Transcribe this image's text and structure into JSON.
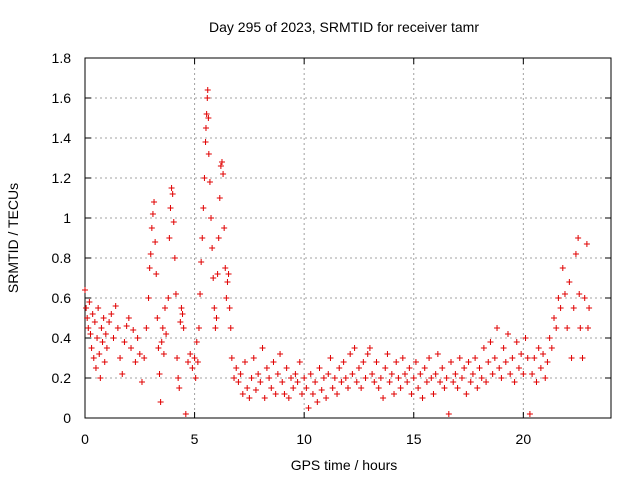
{
  "chart_data": {
    "type": "scatter",
    "title": "Day 295 of 2023, SRMTID for receiver tamr",
    "xlabel": "GPS time / hours",
    "ylabel": "SRMTID / TECUs",
    "xlim": [
      0,
      24
    ],
    "ylim": [
      0,
      1.8
    ],
    "xticks": [
      0,
      5,
      10,
      15,
      20
    ],
    "yticks": [
      0,
      0.2,
      0.4,
      0.6,
      0.8,
      1,
      1.2,
      1.4,
      1.6,
      1.8
    ],
    "xtick_labels": [
      "0",
      "5",
      "10",
      "15",
      "20"
    ],
    "ytick_labels": [
      "0",
      "0.2",
      "0.4",
      "0.6",
      "0.8",
      "1",
      "1.2",
      "1.4",
      "1.6",
      "1.8"
    ],
    "grid": true,
    "marker": "+",
    "color": "#e00000",
    "series": [
      {
        "name": "SRMTID",
        "points": [
          [
            0.0,
            0.64
          ],
          [
            0.05,
            0.55
          ],
          [
            0.1,
            0.5
          ],
          [
            0.15,
            0.45
          ],
          [
            0.2,
            0.58
          ],
          [
            0.25,
            0.42
          ],
          [
            0.3,
            0.35
          ],
          [
            0.35,
            0.52
          ],
          [
            0.4,
            0.3
          ],
          [
            0.45,
            0.48
          ],
          [
            0.5,
            0.25
          ],
          [
            0.55,
            0.4
          ],
          [
            0.6,
            0.55
          ],
          [
            0.65,
            0.32
          ],
          [
            0.7,
            0.2
          ],
          [
            0.75,
            0.45
          ],
          [
            0.8,
            0.38
          ],
          [
            0.85,
            0.5
          ],
          [
            0.9,
            0.28
          ],
          [
            0.95,
            0.42
          ],
          [
            1.0,
            0.35
          ],
          [
            1.1,
            0.48
          ],
          [
            1.2,
            0.52
          ],
          [
            1.3,
            0.4
          ],
          [
            1.4,
            0.56
          ],
          [
            1.5,
            0.45
          ],
          [
            1.6,
            0.3
          ],
          [
            1.7,
            0.22
          ],
          [
            1.8,
            0.38
          ],
          [
            1.9,
            0.46
          ],
          [
            2.0,
            0.5
          ],
          [
            2.1,
            0.35
          ],
          [
            2.2,
            0.44
          ],
          [
            2.3,
            0.28
          ],
          [
            2.4,
            0.4
          ],
          [
            2.5,
            0.32
          ],
          [
            2.6,
            0.18
          ],
          [
            2.7,
            0.3
          ],
          [
            2.8,
            0.45
          ],
          [
            2.9,
            0.6
          ],
          [
            2.95,
            0.75
          ],
          [
            3.0,
            0.82
          ],
          [
            3.05,
            0.95
          ],
          [
            3.1,
            1.02
          ],
          [
            3.15,
            1.08
          ],
          [
            3.2,
            0.88
          ],
          [
            3.25,
            0.72
          ],
          [
            3.3,
            0.5
          ],
          [
            3.35,
            0.35
          ],
          [
            3.4,
            0.22
          ],
          [
            3.45,
            0.08
          ],
          [
            3.5,
            0.38
          ],
          [
            3.55,
            0.45
          ],
          [
            3.6,
            0.32
          ],
          [
            3.65,
            0.55
          ],
          [
            3.7,
            0.42
          ],
          [
            3.8,
            0.6
          ],
          [
            3.85,
            0.9
          ],
          [
            3.9,
            1.05
          ],
          [
            3.95,
            1.15
          ],
          [
            4.0,
            1.12
          ],
          [
            4.05,
            0.98
          ],
          [
            4.1,
            0.8
          ],
          [
            4.15,
            0.62
          ],
          [
            4.2,
            0.3
          ],
          [
            4.25,
            0.2
          ],
          [
            4.3,
            0.15
          ],
          [
            4.35,
            0.48
          ],
          [
            4.4,
            0.55
          ],
          [
            4.45,
            0.52
          ],
          [
            4.5,
            0.45
          ],
          [
            4.6,
            0.02
          ],
          [
            4.7,
            0.28
          ],
          [
            4.8,
            0.32
          ],
          [
            4.9,
            0.25
          ],
          [
            5.0,
            0.3
          ],
          [
            5.05,
            0.2
          ],
          [
            5.1,
            0.38
          ],
          [
            5.15,
            0.28
          ],
          [
            5.2,
            0.45
          ],
          [
            5.25,
            0.62
          ],
          [
            5.3,
            0.78
          ],
          [
            5.35,
            0.9
          ],
          [
            5.4,
            1.05
          ],
          [
            5.45,
            1.2
          ],
          [
            5.5,
            1.38
          ],
          [
            5.52,
            1.45
          ],
          [
            5.55,
            1.52
          ],
          [
            5.58,
            1.6
          ],
          [
            5.6,
            1.64
          ],
          [
            5.63,
            1.5
          ],
          [
            5.65,
            1.32
          ],
          [
            5.7,
            1.18
          ],
          [
            5.75,
            1.0
          ],
          [
            5.8,
            0.85
          ],
          [
            5.85,
            0.7
          ],
          [
            5.9,
            0.55
          ],
          [
            5.95,
            0.45
          ],
          [
            6.0,
            0.5
          ],
          [
            6.05,
            0.72
          ],
          [
            6.1,
            0.9
          ],
          [
            6.15,
            1.1
          ],
          [
            6.2,
            1.26
          ],
          [
            6.25,
            1.28
          ],
          [
            6.3,
            1.22
          ],
          [
            6.35,
            0.95
          ],
          [
            6.4,
            0.75
          ],
          [
            6.45,
            0.6
          ],
          [
            6.5,
            0.68
          ],
          [
            6.55,
            0.72
          ],
          [
            6.6,
            0.55
          ],
          [
            6.65,
            0.45
          ],
          [
            6.7,
            0.3
          ],
          [
            6.8,
            0.2
          ],
          [
            6.9,
            0.25
          ],
          [
            7.0,
            0.18
          ],
          [
            7.1,
            0.22
          ],
          [
            7.2,
            0.12
          ],
          [
            7.3,
            0.28
          ],
          [
            7.4,
            0.15
          ],
          [
            7.5,
            0.1
          ],
          [
            7.6,
            0.2
          ],
          [
            7.7,
            0.3
          ],
          [
            7.8,
            0.14
          ],
          [
            7.9,
            0.22
          ],
          [
            8.0,
            0.18
          ],
          [
            8.1,
            0.35
          ],
          [
            8.2,
            0.1
          ],
          [
            8.3,
            0.25
          ],
          [
            8.4,
            0.2
          ],
          [
            8.5,
            0.15
          ],
          [
            8.6,
            0.28
          ],
          [
            8.7,
            0.12
          ],
          [
            8.8,
            0.22
          ],
          [
            8.9,
            0.32
          ],
          [
            9.0,
            0.18
          ],
          [
            9.1,
            0.12
          ],
          [
            9.2,
            0.25
          ],
          [
            9.3,
            0.1
          ],
          [
            9.4,
            0.2
          ],
          [
            9.5,
            0.15
          ],
          [
            9.6,
            0.22
          ],
          [
            9.7,
            0.18
          ],
          [
            9.8,
            0.28
          ],
          [
            9.9,
            0.12
          ],
          [
            10.0,
            0.2
          ],
          [
            10.1,
            0.15
          ],
          [
            10.2,
            0.05
          ],
          [
            10.3,
            0.22
          ],
          [
            10.4,
            0.12
          ],
          [
            10.5,
            0.18
          ],
          [
            10.6,
            0.08
          ],
          [
            10.7,
            0.25
          ],
          [
            10.8,
            0.14
          ],
          [
            10.9,
            0.2
          ],
          [
            11.0,
            0.1
          ],
          [
            11.1,
            0.22
          ],
          [
            11.2,
            0.3
          ],
          [
            11.3,
            0.15
          ],
          [
            11.4,
            0.2
          ],
          [
            11.5,
            0.12
          ],
          [
            11.6,
            0.25
          ],
          [
            11.7,
            0.18
          ],
          [
            11.8,
            0.28
          ],
          [
            11.9,
            0.2
          ],
          [
            12.0,
            0.15
          ],
          [
            12.1,
            0.32
          ],
          [
            12.2,
            0.22
          ],
          [
            12.3,
            0.35
          ],
          [
            12.4,
            0.18
          ],
          [
            12.5,
            0.25
          ],
          [
            12.6,
            0.15
          ],
          [
            12.7,
            0.28
          ],
          [
            12.8,
            0.2
          ],
          [
            12.9,
            0.32
          ],
          [
            13.0,
            0.35
          ],
          [
            13.1,
            0.22
          ],
          [
            13.2,
            0.18
          ],
          [
            13.3,
            0.28
          ],
          [
            13.4,
            0.15
          ],
          [
            13.5,
            0.2
          ],
          [
            13.6,
            0.1
          ],
          [
            13.7,
            0.25
          ],
          [
            13.8,
            0.32
          ],
          [
            13.9,
            0.18
          ],
          [
            14.0,
            0.22
          ],
          [
            14.1,
            0.12
          ],
          [
            14.2,
            0.28
          ],
          [
            14.3,
            0.2
          ],
          [
            14.4,
            0.15
          ],
          [
            14.5,
            0.3
          ],
          [
            14.6,
            0.22
          ],
          [
            14.7,
            0.18
          ],
          [
            14.8,
            0.25
          ],
          [
            14.9,
            0.12
          ],
          [
            15.0,
            0.2
          ],
          [
            15.1,
            0.28
          ],
          [
            15.2,
            0.15
          ],
          [
            15.3,
            0.22
          ],
          [
            15.4,
            0.1
          ],
          [
            15.5,
            0.25
          ],
          [
            15.6,
            0.18
          ],
          [
            15.7,
            0.3
          ],
          [
            15.8,
            0.2
          ],
          [
            15.9,
            0.12
          ],
          [
            16.0,
            0.22
          ],
          [
            16.1,
            0.32
          ],
          [
            16.2,
            0.18
          ],
          [
            16.3,
            0.25
          ],
          [
            16.4,
            0.15
          ],
          [
            16.5,
            0.2
          ],
          [
            16.6,
            0.02
          ],
          [
            16.7,
            0.28
          ],
          [
            16.8,
            0.18
          ],
          [
            16.9,
            0.22
          ],
          [
            17.0,
            0.15
          ],
          [
            17.1,
            0.3
          ],
          [
            17.2,
            0.2
          ],
          [
            17.3,
            0.25
          ],
          [
            17.4,
            0.12
          ],
          [
            17.5,
            0.28
          ],
          [
            17.6,
            0.18
          ],
          [
            17.7,
            0.22
          ],
          [
            17.8,
            0.3
          ],
          [
            17.9,
            0.15
          ],
          [
            18.0,
            0.25
          ],
          [
            18.1,
            0.2
          ],
          [
            18.2,
            0.35
          ],
          [
            18.3,
            0.18
          ],
          [
            18.4,
            0.28
          ],
          [
            18.5,
            0.38
          ],
          [
            18.6,
            0.22
          ],
          [
            18.7,
            0.3
          ],
          [
            18.8,
            0.45
          ],
          [
            18.9,
            0.25
          ],
          [
            19.0,
            0.2
          ],
          [
            19.1,
            0.35
          ],
          [
            19.2,
            0.28
          ],
          [
            19.3,
            0.42
          ],
          [
            19.4,
            0.22
          ],
          [
            19.5,
            0.3
          ],
          [
            19.6,
            0.18
          ],
          [
            19.7,
            0.38
          ],
          [
            19.8,
            0.25
          ],
          [
            19.9,
            0.32
          ],
          [
            20.0,
            0.22
          ],
          [
            20.1,
            0.4
          ],
          [
            20.2,
            0.3
          ],
          [
            20.3,
            0.02
          ],
          [
            20.4,
            0.22
          ],
          [
            20.5,
            0.3
          ],
          [
            20.6,
            0.18
          ],
          [
            20.7,
            0.35
          ],
          [
            20.8,
            0.25
          ],
          [
            20.9,
            0.32
          ],
          [
            21.0,
            0.2
          ],
          [
            21.1,
            0.28
          ],
          [
            21.2,
            0.4
          ],
          [
            21.3,
            0.35
          ],
          [
            21.4,
            0.5
          ],
          [
            21.5,
            0.45
          ],
          [
            21.6,
            0.6
          ],
          [
            21.7,
            0.55
          ],
          [
            21.8,
            0.75
          ],
          [
            21.9,
            0.62
          ],
          [
            22.0,
            0.45
          ],
          [
            22.1,
            0.68
          ],
          [
            22.2,
            0.3
          ],
          [
            22.3,
            0.55
          ],
          [
            22.4,
            0.82
          ],
          [
            22.5,
            0.9
          ],
          [
            22.55,
            0.62
          ],
          [
            22.6,
            0.45
          ],
          [
            22.7,
            0.3
          ],
          [
            22.8,
            0.6
          ],
          [
            22.9,
            0.87
          ],
          [
            22.95,
            0.45
          ],
          [
            23.0,
            0.55
          ]
        ]
      }
    ]
  }
}
